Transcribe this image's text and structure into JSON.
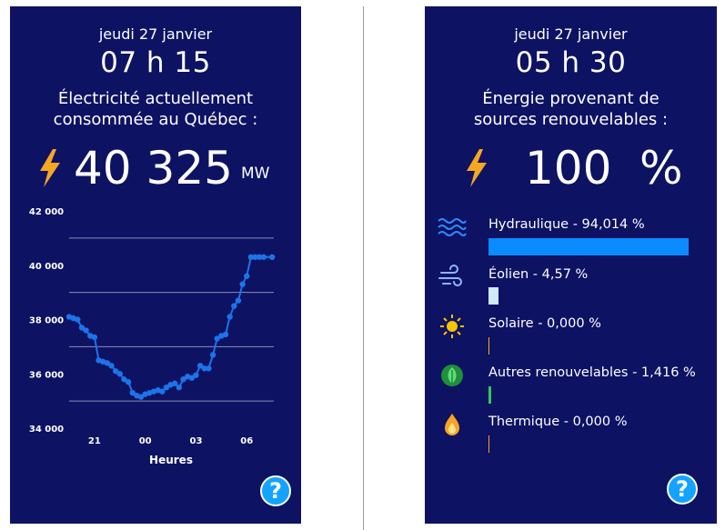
{
  "consumption": {
    "date": "jeudi 27 janvier",
    "time": "07 h 15",
    "subtitle_line1": "Électricité actuellement",
    "subtitle_line2": "consommée au Québec :",
    "value": "40 325",
    "unit": "MW",
    "help": "?"
  },
  "renewables": {
    "date": "jeudi 27 janvier",
    "time": "05 h 30",
    "subtitle_line1": "Énergie provenant de",
    "subtitle_line2": "sources renouvelables :",
    "value": "100",
    "unit": "%",
    "help": "?",
    "sources": [
      {
        "label": "Hydraulique - 94,014 %",
        "percent": 94.014,
        "color": "#0a8cff",
        "icon": "water-waves-icon"
      },
      {
        "label": "Éolien - 4,57 %",
        "percent": 4.57,
        "color": "#cfe9ff",
        "icon": "wind-icon"
      },
      {
        "label": "Solaire - 0,000 %",
        "percent": 0.0,
        "color": "#f5b800",
        "icon": "sun-icon"
      },
      {
        "label": "Autres renouvelables - 1,416 %",
        "percent": 1.416,
        "color": "#35c759",
        "icon": "leaf-icon"
      },
      {
        "label": "Thermique - 0,000 %",
        "percent": 0.0,
        "color": "#f5a623",
        "icon": "flame-icon"
      }
    ]
  },
  "colors": {
    "panel_bg": "#0d1263",
    "accent_blue": "#1c74e8",
    "bolt": "#f5a623"
  },
  "chart_data": {
    "type": "line",
    "xlabel": "Heures",
    "ylabel": "",
    "ylim": [
      34000,
      42000
    ],
    "yticks": [
      34000,
      36000,
      38000,
      40000,
      42000
    ],
    "ytick_labels": [
      "34 000",
      "36 000",
      "38 000",
      "40 000",
      "42 000"
    ],
    "xlim": [
      19.5,
      31.6
    ],
    "xticks": [
      21,
      24,
      27,
      30
    ],
    "xtick_labels": [
      "21",
      "00",
      "03",
      "06"
    ],
    "grid": true,
    "series": [
      {
        "values_x": [
          19.5,
          19.75,
          20.0,
          20.25,
          20.5,
          20.75,
          21.0,
          21.25,
          21.5,
          21.75,
          22.0,
          22.25,
          22.5,
          22.75,
          23.0,
          23.25,
          23.5,
          23.75,
          24.0,
          24.25,
          24.5,
          24.75,
          25.0,
          25.25,
          25.5,
          25.75,
          26.0,
          26.25,
          26.5,
          26.75,
          27.0,
          27.25,
          27.5,
          27.75,
          28.0,
          28.25,
          28.5,
          28.75,
          29.0,
          29.25,
          29.5,
          29.75,
          30.0,
          30.25,
          30.5,
          30.75,
          31.0,
          31.25,
          31.5
        ],
        "values_y": [
          38100,
          38050,
          38000,
          37700,
          37600,
          37400,
          37350,
          36500,
          36450,
          36400,
          36300,
          36100,
          36000,
          35800,
          35700,
          35300,
          35200,
          35150,
          35250,
          35300,
          35350,
          35400,
          35350,
          35500,
          35600,
          35650,
          35500,
          35800,
          35900,
          35850,
          35950,
          36300,
          36200,
          36200,
          36700,
          37300,
          37400,
          37450,
          38100,
          38500,
          38700,
          39300,
          39600,
          40300,
          40300,
          40300,
          40300,
          40300,
          40300
        ]
      }
    ]
  }
}
